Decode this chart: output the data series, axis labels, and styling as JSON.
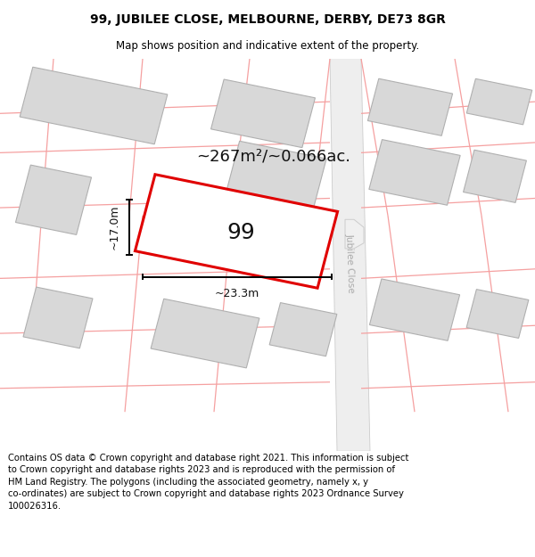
{
  "title": "99, JUBILEE CLOSE, MELBOURNE, DERBY, DE73 8GR",
  "subtitle": "Map shows position and indicative extent of the property.",
  "footer_lines": [
    "Contains OS data © Crown copyright and database right 2021. This information is subject",
    "to Crown copyright and database rights 2023 and is reproduced with the permission of",
    "HM Land Registry. The polygons (including the associated geometry, namely x, y",
    "co-ordinates) are subject to Crown copyright and database rights 2023 Ordnance Survey",
    "100026316."
  ],
  "area_label": "~267m²/~0.066ac.",
  "width_label": "~23.3m",
  "height_label": "~17.0m",
  "plot_number": "99",
  "road_label": "Jubilee Close",
  "building_fill": "#d8d8d8",
  "building_edge": "#b0b0b0",
  "road_fill": "#e8e8e8",
  "road_edge": "#c0c0c0",
  "pink": "#f5a0a0",
  "red": "#e00000",
  "map_bg": "#ffffff",
  "title_fontsize": 10,
  "subtitle_fontsize": 8.5,
  "area_fontsize": 13,
  "plot_fontsize": 18,
  "dim_fontsize": 9,
  "road_fontsize": 7.5,
  "footer_fontsize": 7.2
}
